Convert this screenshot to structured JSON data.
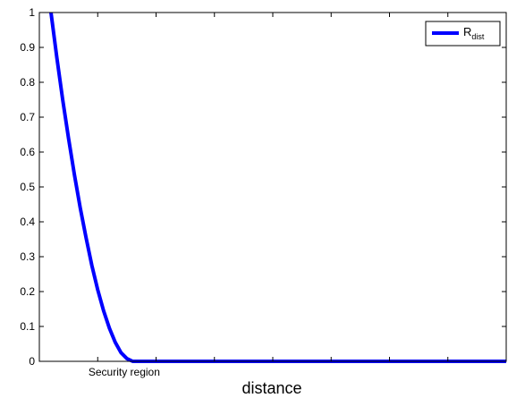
{
  "chart_data": {
    "type": "line",
    "xlabel": "distance",
    "ylabel": "",
    "title": "",
    "xlim": [
      0,
      8
    ],
    "ylim": [
      0,
      1
    ],
    "x_ticks": [
      0,
      1,
      2,
      3,
      4,
      5,
      6,
      7,
      8
    ],
    "x_tick_labels": [
      {
        "x": 1.5,
        "label": "Security region"
      }
    ],
    "y_ticks": [
      0,
      0.1,
      0.2,
      0.3,
      0.4,
      0.5,
      0.6,
      0.7,
      0.8,
      0.9,
      1
    ],
    "y_tick_labels": [
      "0",
      "0.1",
      "0.2",
      "0.3",
      "0.4",
      "0.5",
      "0.6",
      "0.7",
      "0.8",
      "0.9",
      "1"
    ],
    "grid": false,
    "legend_position": "top-right",
    "series": [
      {
        "label_main": "R",
        "label_sub": "dist",
        "color": "#0000ff",
        "x": [
          0.2,
          0.3,
          0.4,
          0.5,
          0.6,
          0.7,
          0.8,
          0.9,
          1.0,
          1.1,
          1.2,
          1.3,
          1.4,
          1.5,
          1.6,
          1.7,
          1.8,
          2.0,
          3.0,
          4.0,
          5.0,
          6.0,
          7.0,
          8.0
        ],
        "y": [
          1.0,
          0.87,
          0.75,
          0.64,
          0.535,
          0.44,
          0.355,
          0.275,
          0.205,
          0.145,
          0.095,
          0.055,
          0.025,
          0.008,
          0.0,
          0.0,
          0.0,
          0.0,
          0.0,
          0.0,
          0.0,
          0.0,
          0.0,
          0.0
        ]
      }
    ]
  }
}
